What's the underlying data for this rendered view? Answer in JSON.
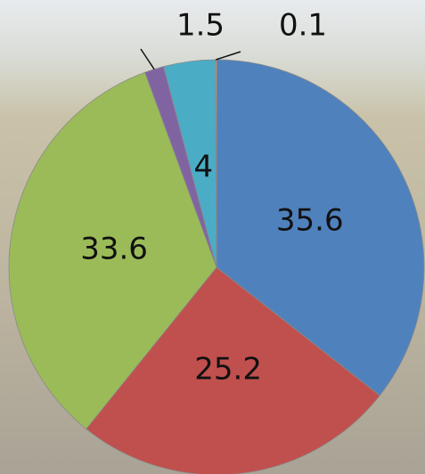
{
  "chart_data": {
    "type": "pie",
    "values": [
      35.6,
      25.2,
      33.6,
      1.5,
      4,
      0.1
    ],
    "colors": [
      "#4f81bd",
      "#c0504d",
      "#9bbb59",
      "#8064a2",
      "#4bacc6",
      "#f79646"
    ]
  }
}
